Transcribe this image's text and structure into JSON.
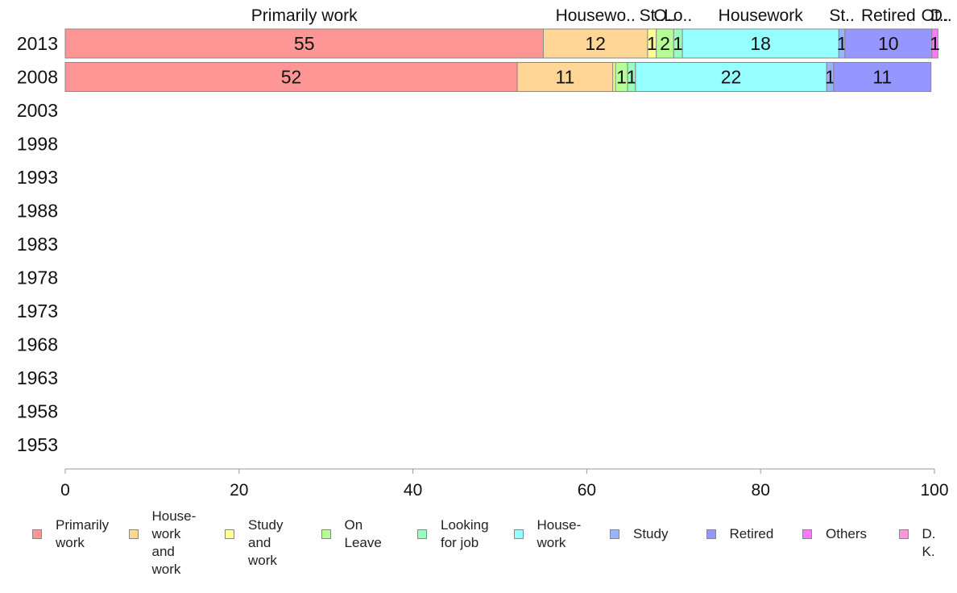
{
  "chart_data": {
    "type": "bar",
    "orientation": "horizontal",
    "stacked": true,
    "categories": [
      "2013",
      "2008",
      "2003",
      "1998",
      "1993",
      "1988",
      "1983",
      "1978",
      "1973",
      "1968",
      "1963",
      "1958",
      "1953"
    ],
    "xlim": [
      0,
      100
    ],
    "xticks": [
      "0",
      "20",
      "40",
      "60",
      "80",
      "100"
    ],
    "grid": false,
    "legend_position": "bottom",
    "top_labels": [
      "Primarily work",
      "Housewo..",
      "St..",
      "O..",
      "Lo..",
      "Housework",
      "St..",
      "Retired",
      "Ot..",
      "D.."
    ],
    "series": [
      {
        "name": "Primarily work",
        "legend": "Primarily\nwork",
        "color": "#ff9696",
        "values": [
          55,
          52,
          null,
          null,
          null,
          null,
          null,
          null,
          null,
          null,
          null,
          null,
          null
        ],
        "labels": [
          "55",
          "52"
        ]
      },
      {
        "name": "House-work and work",
        "legend": "House-\nwork\nand work",
        "color": "#ffd696",
        "values": [
          12,
          11,
          null,
          null,
          null,
          null,
          null,
          null,
          null,
          null,
          null,
          null,
          null
        ],
        "labels": [
          "12",
          "11"
        ]
      },
      {
        "name": "Study and work",
        "legend": "Study\nand work",
        "color": "#ffff96",
        "values": [
          1,
          0.3,
          null,
          null,
          null,
          null,
          null,
          null,
          null,
          null,
          null,
          null,
          null
        ],
        "labels": [
          "1",
          ""
        ]
      },
      {
        "name": "On Leave",
        "legend": "On\nLeave",
        "color": "#b4ff96",
        "values": [
          2,
          1.4,
          null,
          null,
          null,
          null,
          null,
          null,
          null,
          null,
          null,
          null,
          null
        ],
        "labels": [
          "2",
          "1"
        ]
      },
      {
        "name": "Looking for job",
        "legend": "Looking\nfor job",
        "color": "#96ffbe",
        "values": [
          1,
          0.9,
          null,
          null,
          null,
          null,
          null,
          null,
          null,
          null,
          null,
          null,
          null
        ],
        "labels": [
          "1",
          "1"
        ]
      },
      {
        "name": "House-work",
        "legend": "House-\nwork",
        "color": "#96ffff",
        "values": [
          18,
          22,
          null,
          null,
          null,
          null,
          null,
          null,
          null,
          null,
          null,
          null,
          null
        ],
        "labels": [
          "18",
          "22"
        ]
      },
      {
        "name": "Study",
        "legend": "Study",
        "color": "#96b4ff",
        "values": [
          0.7,
          0.8,
          null,
          null,
          null,
          null,
          null,
          null,
          null,
          null,
          null,
          null,
          null
        ],
        "labels": [
          "1",
          "1"
        ]
      },
      {
        "name": "Retired",
        "legend": "Retired",
        "color": "#9696ff",
        "values": [
          10,
          11.2,
          null,
          null,
          null,
          null,
          null,
          null,
          null,
          null,
          null,
          null,
          null
        ],
        "labels": [
          "10",
          "11"
        ]
      },
      {
        "name": "Others",
        "legend": "Others",
        "color": "#ff78ff",
        "values": [
          0.7,
          0,
          null,
          null,
          null,
          null,
          null,
          null,
          null,
          null,
          null,
          null,
          null
        ],
        "labels": [
          "1",
          ""
        ]
      },
      {
        "name": "D. K.",
        "legend": "D. K.",
        "color": "#ff96dc",
        "values": [
          0,
          0,
          null,
          null,
          null,
          null,
          null,
          null,
          null,
          null,
          null,
          null,
          null
        ],
        "labels": [
          "",
          ""
        ]
      }
    ]
  }
}
